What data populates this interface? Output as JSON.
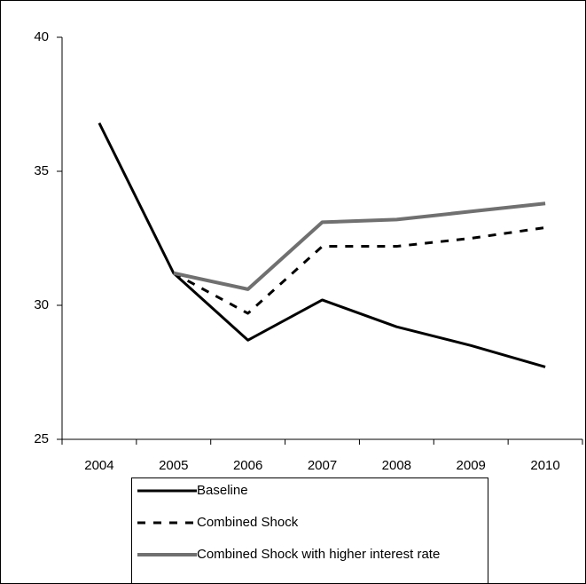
{
  "chart_data": {
    "type": "line",
    "categories": [
      "2004",
      "2005",
      "2006",
      "2007",
      "2008",
      "2009",
      "2010"
    ],
    "series": [
      {
        "name": "Baseline",
        "color": "#000000",
        "values": [
          36.8,
          31.2,
          28.7,
          30.2,
          29.2,
          28.5,
          27.7
        ]
      },
      {
        "name": "Combined Shock",
        "color": "#000000",
        "values": [
          null,
          31.2,
          29.7,
          32.2,
          32.2,
          32.5,
          32.9
        ]
      },
      {
        "name": "Combined Shock with higher interest rate",
        "color": "#707070",
        "values": [
          null,
          31.2,
          30.6,
          33.1,
          33.2,
          33.5,
          33.8
        ]
      }
    ],
    "ylim": [
      25,
      40
    ],
    "yticks": [
      25,
      30,
      35,
      40
    ],
    "grid": false,
    "legend": "bottom"
  }
}
